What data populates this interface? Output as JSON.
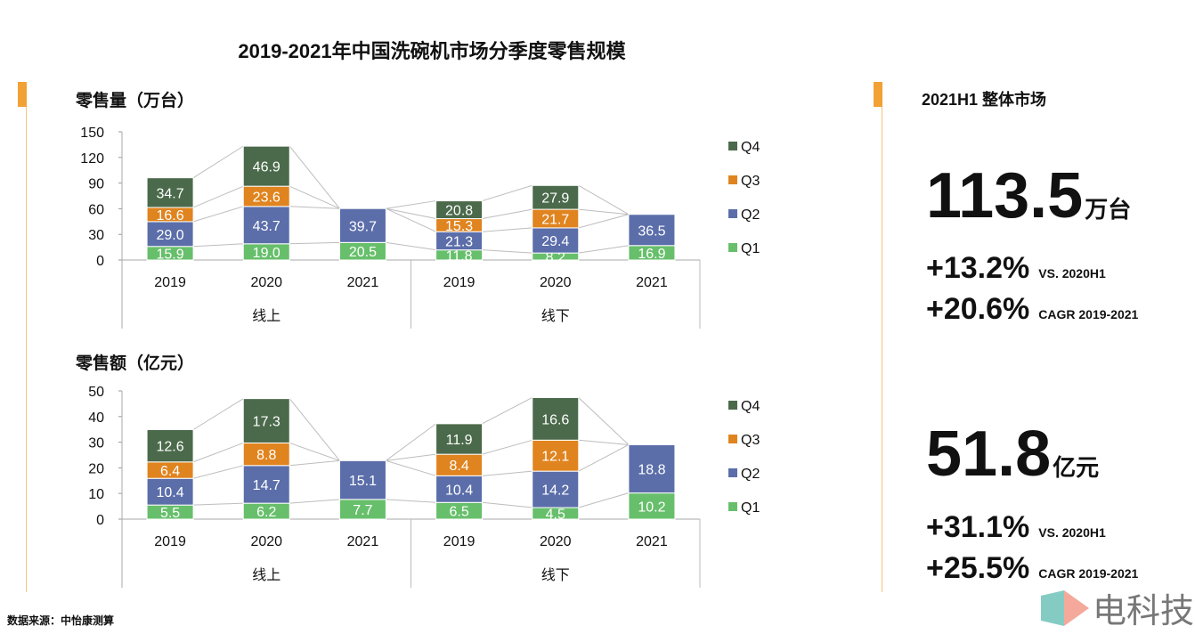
{
  "title": "2019-2021年中国洗碗机市场分季度零售规模",
  "source": "数据来源：中怡康测算",
  "watermark": "电科技",
  "colors": {
    "Q1": "#67bf6b",
    "Q2": "#5b6eaa",
    "Q3": "#e0841f",
    "Q4": "#4b6a4b",
    "accent": "#f2a134"
  },
  "right_panel": {
    "title": "2021H1 整体市场",
    "volume": {
      "value": "113.5",
      "unit": "万台",
      "growth1": "+13.2%",
      "growth1_label": "VS. 2020H1",
      "growth2": "+20.6%",
      "growth2_label": "CAGR 2019-2021"
    },
    "revenue": {
      "value": "51.8",
      "unit": "亿元",
      "growth1": "+31.1%",
      "growth1_label": "VS. 2020H1",
      "growth2": "+25.5%",
      "growth2_label": "CAGR 2019-2021"
    }
  },
  "chart_data": [
    {
      "type": "bar",
      "stacked": true,
      "title": "零售量（万台）",
      "categories": [
        "2019",
        "2020",
        "2021",
        "2019",
        "2020",
        "2021"
      ],
      "groups": [
        "线上",
        "线下"
      ],
      "ylim": [
        0,
        150
      ],
      "yticks": [
        "0",
        "30",
        "60",
        "90",
        "120",
        "150"
      ],
      "series": [
        {
          "name": "Q1",
          "values": [
            15.9,
            19.0,
            20.5,
            11.8,
            8.2,
            16.9
          ],
          "labels": [
            "15.9",
            "19.0",
            "20.5",
            "11.8",
            "8.2",
            "16.9"
          ]
        },
        {
          "name": "Q2",
          "values": [
            29.0,
            43.7,
            39.7,
            21.3,
            29.4,
            36.5
          ],
          "labels": [
            "29.0",
            "43.7",
            "39.7",
            "21.3",
            "29.4",
            "36.5"
          ]
        },
        {
          "name": "Q3",
          "values": [
            16.6,
            23.6,
            null,
            15.3,
            21.7,
            null
          ],
          "labels": [
            "16.6",
            "23.6",
            "",
            "15.3",
            "21.7",
            ""
          ]
        },
        {
          "name": "Q4",
          "values": [
            34.7,
            46.9,
            null,
            20.8,
            27.9,
            null
          ],
          "labels": [
            "34.7",
            "46.9",
            "",
            "20.8",
            "27.9",
            ""
          ]
        }
      ],
      "legend": [
        "Q4",
        "Q3",
        "Q2",
        "Q1"
      ]
    },
    {
      "type": "bar",
      "stacked": true,
      "title": "零售额（亿元）",
      "categories": [
        "2019",
        "2020",
        "2021",
        "2019",
        "2020",
        "2021"
      ],
      "groups": [
        "线上",
        "线下"
      ],
      "ylim": [
        0,
        50
      ],
      "yticks": [
        "0",
        "10",
        "20",
        "30",
        "40",
        "50"
      ],
      "series": [
        {
          "name": "Q1",
          "values": [
            5.5,
            6.2,
            7.7,
            6.5,
            4.5,
            10.2
          ],
          "labels": [
            "5.5",
            "6.2",
            "7.7",
            "6.5",
            "4.5",
            "10.2"
          ]
        },
        {
          "name": "Q2",
          "values": [
            10.4,
            14.7,
            15.1,
            10.4,
            14.2,
            18.8
          ],
          "labels": [
            "10.4",
            "14.7",
            "15.1",
            "10.4",
            "14.2",
            "18.8"
          ]
        },
        {
          "name": "Q3",
          "values": [
            6.4,
            8.8,
            null,
            8.4,
            12.1,
            null
          ],
          "labels": [
            "6.4",
            "8.8",
            "",
            "8.4",
            "12.1",
            ""
          ]
        },
        {
          "name": "Q4",
          "values": [
            12.6,
            17.3,
            null,
            11.9,
            16.6,
            null
          ],
          "labels": [
            "12.6",
            "17.3",
            "",
            "11.9",
            "16.6",
            ""
          ]
        }
      ],
      "legend": [
        "Q4",
        "Q3",
        "Q2",
        "Q1"
      ]
    }
  ]
}
